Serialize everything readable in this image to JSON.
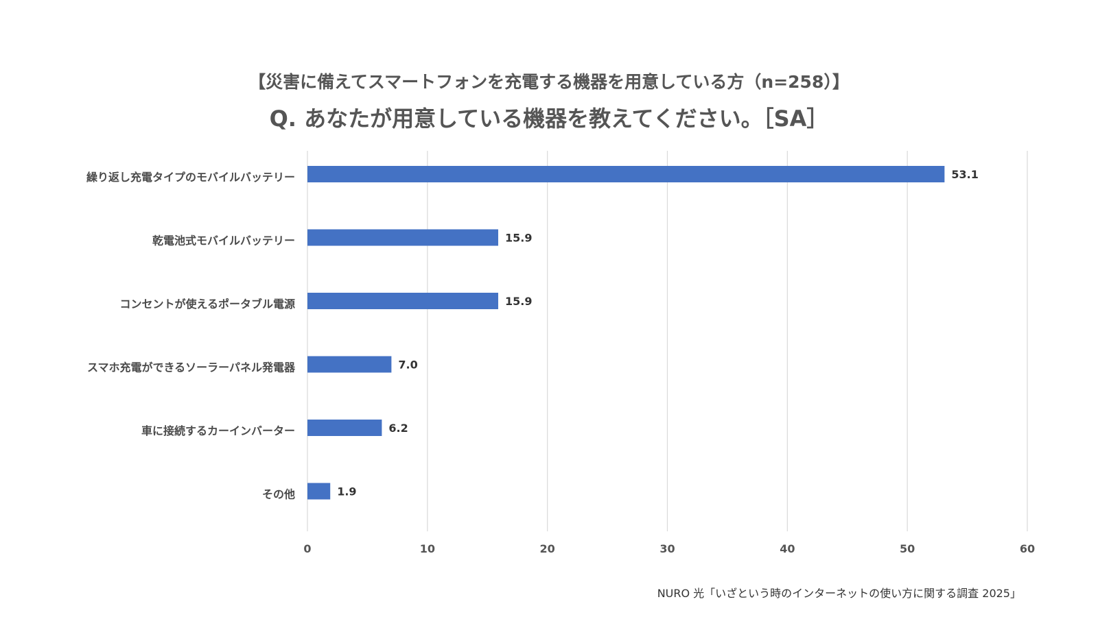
{
  "title_line1": "【災害に備えてスマートフォンを充電する機器を用意している方（n=258）】",
  "title_line2": "Q. あなたが用意している機器を教えてください。［SA］",
  "source": "NURO 光「いざという時のインターネットの使い方に関する調査 2025」",
  "colors": {
    "bar": "#4472c4",
    "grid": "#d9d9d9"
  },
  "chart_data": {
    "type": "bar",
    "orientation": "horizontal",
    "categories": [
      "繰り返し充電タイプのモバイルバッテリー",
      "乾電池式モバイルバッテリー",
      "コンセントが使えるポータブル電源",
      "スマホ充電ができるソーラーパネル発電器",
      "車に接続するカーインバーター",
      "その他"
    ],
    "values": [
      53.1,
      15.9,
      15.9,
      7.0,
      6.2,
      1.9
    ],
    "value_labels": [
      "53.1",
      "15.9",
      "15.9",
      "7.0",
      "6.2",
      "1.9"
    ],
    "xlim": [
      0,
      60
    ],
    "xticks": [
      0,
      10,
      20,
      30,
      40,
      50,
      60
    ],
    "grid": true,
    "legend": "none"
  }
}
